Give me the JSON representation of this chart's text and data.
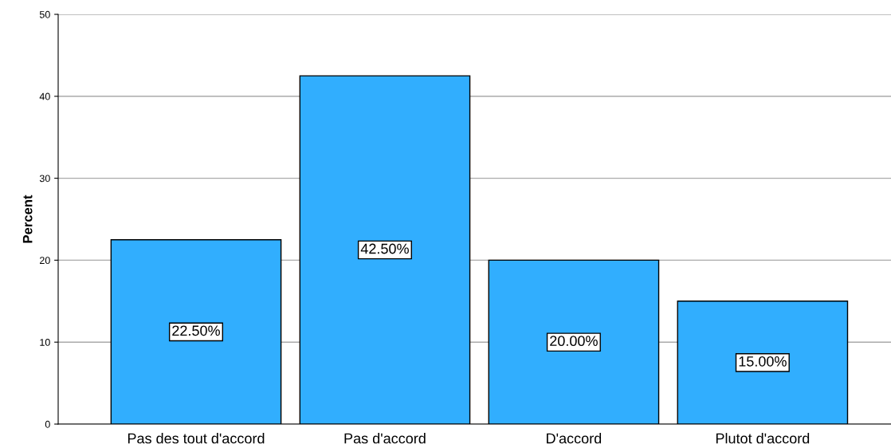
{
  "chart_data": {
    "type": "bar",
    "ylabel": "Percent",
    "categories": [
      "Pas des tout d'accord",
      "Pas d'accord",
      "D'accord",
      "Plutot d'accord"
    ],
    "values": [
      22.5,
      42.5,
      20.0,
      15.0
    ],
    "value_labels": [
      "22.50%",
      "42.50%",
      "20.00%",
      "15.00%"
    ],
    "color": "#31aefe",
    "ylim": [
      0,
      50
    ],
    "yticks": [
      0,
      10,
      20,
      30,
      40,
      50
    ],
    "grid": "y",
    "legend": false
  }
}
